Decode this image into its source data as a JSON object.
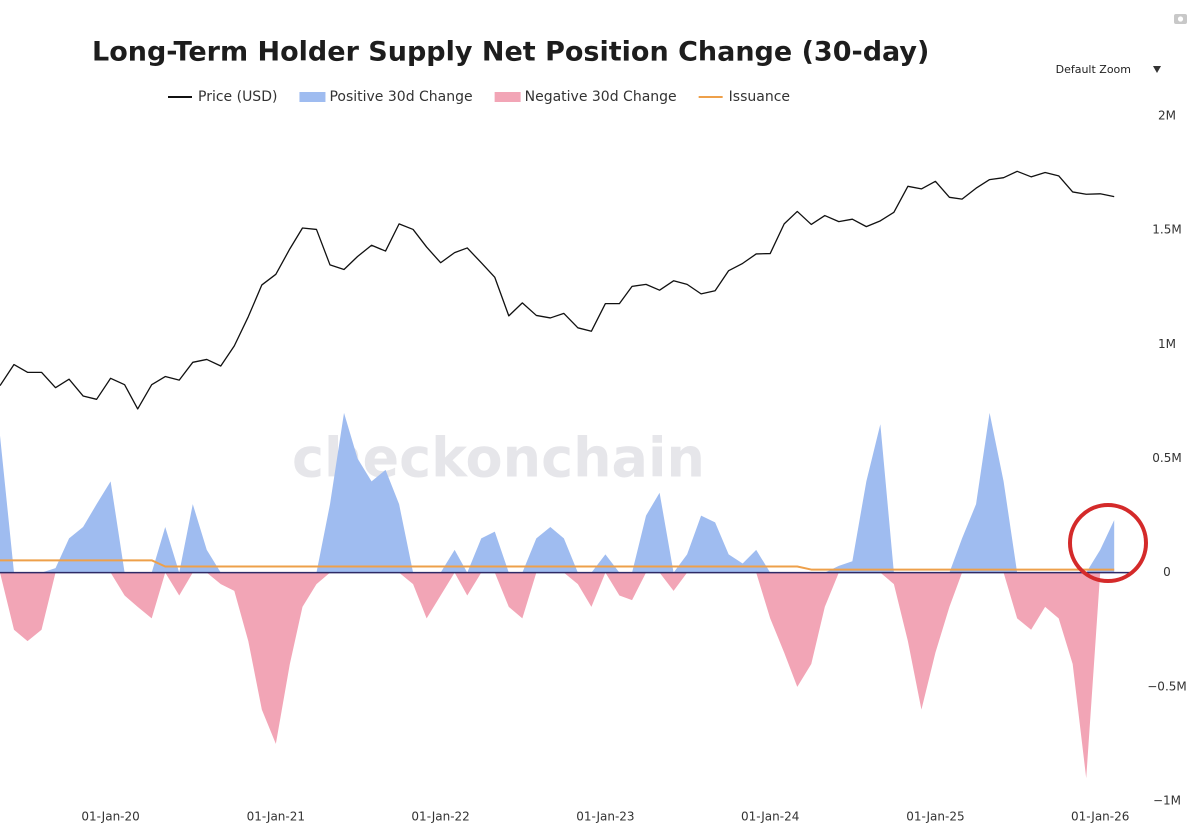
{
  "chart_data": {
    "type": "area-line",
    "title": "Long-Term Holder Supply Net Position Change (30-day)",
    "watermark": "checkonchain",
    "zoom_control": "Default Zoom",
    "x": [
      "2019-05-01",
      "2019-06-01",
      "2019-07-01",
      "2019-08-01",
      "2019-09-01",
      "2019-10-01",
      "2019-11-01",
      "2019-12-01",
      "2020-01-01",
      "2020-02-01",
      "2020-03-01",
      "2020-04-01",
      "2020-05-01",
      "2020-06-01",
      "2020-07-01",
      "2020-08-01",
      "2020-09-01",
      "2020-10-01",
      "2020-11-01",
      "2020-12-01",
      "2021-01-01",
      "2021-02-01",
      "2021-03-01",
      "2021-04-01",
      "2021-05-01",
      "2021-06-01",
      "2021-07-01",
      "2021-08-01",
      "2021-09-01",
      "2021-10-01",
      "2021-11-01",
      "2021-12-01",
      "2022-01-01",
      "2022-02-01",
      "2022-03-01",
      "2022-04-01",
      "2022-05-01",
      "2022-06-01",
      "2022-07-01",
      "2022-08-01",
      "2022-09-01",
      "2022-10-01",
      "2022-11-01",
      "2022-12-01",
      "2023-01-01",
      "2023-02-01",
      "2023-03-01",
      "2023-04-01",
      "2023-05-01",
      "2023-06-01",
      "2023-07-01",
      "2023-08-01",
      "2023-09-01",
      "2023-10-01",
      "2023-11-01",
      "2023-12-01",
      "2024-01-01",
      "2024-02-01",
      "2024-03-01",
      "2024-04-01",
      "2024-05-01",
      "2024-06-01",
      "2024-07-01",
      "2024-08-01",
      "2024-09-01",
      "2024-10-01",
      "2024-11-01",
      "2024-12-01",
      "2025-01-01",
      "2025-02-01",
      "2025-03-01",
      "2025-04-01",
      "2025-05-01",
      "2025-06-01",
      "2025-07-01",
      "2025-08-01",
      "2025-09-01",
      "2025-10-01",
      "2025-11-01",
      "2025-12-01",
      "2026-01-01",
      "2026-02-01"
    ],
    "xlim": [
      "2019-05-01",
      "2026-03-08"
    ],
    "xticks": [
      {
        "value": "2020-01-01",
        "label": "01-Jan-20"
      },
      {
        "value": "2021-01-01",
        "label": "01-Jan-21"
      },
      {
        "value": "2022-01-01",
        "label": "01-Jan-22"
      },
      {
        "value": "2023-01-01",
        "label": "01-Jan-23"
      },
      {
        "value": "2024-01-01",
        "label": "01-Jan-24"
      },
      {
        "value": "2025-01-01",
        "label": "01-Jan-25"
      },
      {
        "value": "2026-01-01",
        "label": "01-Jan-26"
      }
    ],
    "ylim": [
      -1000000,
      2000000
    ],
    "yticks": [
      {
        "value": 2000000,
        "label": "2M"
      },
      {
        "value": 1500000,
        "label": "1.5M"
      },
      {
        "value": 1000000,
        "label": "1M"
      },
      {
        "value": 500000,
        "label": "0.5M"
      },
      0,
      {
        "value": -500000,
        "label": "−0.5M"
      },
      {
        "value": -1000000,
        "label": "−1M"
      }
    ],
    "y2lim": [
      54,
      227000
    ],
    "y2scale": "log",
    "grid": false,
    "series": [
      {
        "name": "Price (USD)",
        "color": "#111111",
        "style": "line",
        "axis": "y2",
        "values": [
          8500,
          11000,
          10000,
          10000,
          8300,
          9200,
          7500,
          7200,
          9300,
          8600,
          6400,
          8600,
          9500,
          9100,
          11300,
          11700,
          10800,
          13800,
          19700,
          29000,
          33000,
          45000,
          58000,
          57000,
          37000,
          35000,
          41000,
          47000,
          43800,
          61000,
          57000,
          46000,
          38000,
          43000,
          45500,
          38000,
          31800,
          19900,
          23300,
          20000,
          19400,
          20500,
          17200,
          16500,
          23100,
          23100,
          28500,
          29200,
          27200,
          30500,
          29200,
          26000,
          27000,
          34500,
          37700,
          42300,
          42500,
          61000,
          71000,
          60600,
          67500,
          62700,
          64600,
          59000,
          63300,
          70200,
          96400,
          93400,
          102400,
          84300,
          82500,
          94200,
          104600,
          107100,
          115700,
          108200,
          114000,
          109500,
          90000,
          87500,
          88000,
          85000
        ]
      },
      {
        "name": "Positive 30d Change",
        "color": "#9fbcf0",
        "style": "area",
        "values": [
          600000,
          0,
          0,
          0,
          20000,
          150000,
          200000,
          300000,
          400000,
          0,
          0,
          0,
          200000,
          0,
          300000,
          100000,
          0,
          0,
          0,
          0,
          0,
          0,
          0,
          0,
          300000,
          700000,
          500000,
          400000,
          450000,
          300000,
          0,
          0,
          0,
          100000,
          0,
          150000,
          180000,
          0,
          0,
          150000,
          200000,
          150000,
          0,
          0,
          80000,
          0,
          0,
          250000,
          350000,
          0,
          80000,
          250000,
          220000,
          80000,
          40000,
          100000,
          0,
          0,
          0,
          0,
          0,
          30000,
          50000,
          400000,
          650000,
          0,
          0,
          0,
          0,
          0,
          150000,
          300000,
          700000,
          400000,
          0,
          0,
          0,
          0,
          0,
          0,
          100000,
          230000
        ]
      },
      {
        "name": "Negative 30d Change",
        "color": "#f2a5b6",
        "style": "area",
        "values": [
          0,
          -250000,
          -300000,
          -250000,
          0,
          0,
          0,
          0,
          0,
          -100000,
          -150000,
          -200000,
          0,
          -100000,
          0,
          0,
          -50000,
          -80000,
          -300000,
          -600000,
          -750000,
          -400000,
          -150000,
          -50000,
          0,
          0,
          0,
          0,
          0,
          0,
          -50000,
          -200000,
          -100000,
          0,
          -100000,
          0,
          0,
          -150000,
          -200000,
          0,
          0,
          0,
          -50000,
          -150000,
          0,
          -100000,
          -120000,
          0,
          0,
          -80000,
          0,
          0,
          0,
          0,
          0,
          0,
          -200000,
          -350000,
          -500000,
          -400000,
          -150000,
          0,
          0,
          0,
          0,
          -50000,
          -300000,
          -600000,
          -350000,
          -150000,
          0,
          0,
          0,
          0,
          -200000,
          -250000,
          -150000,
          -200000,
          -400000,
          -900000,
          0,
          0
        ]
      },
      {
        "name": "Issuance",
        "color": "#eea04a",
        "style": "line",
        "values": [
          54000,
          54000,
          54000,
          54000,
          54000,
          54000,
          54000,
          54000,
          54000,
          54000,
          54000,
          54000,
          27000,
          27000,
          27000,
          27000,
          27000,
          27000,
          27000,
          27000,
          27000,
          27000,
          27000,
          27000,
          27000,
          27000,
          27000,
          27000,
          27000,
          27000,
          27000,
          27000,
          27000,
          27000,
          27000,
          27000,
          27000,
          27000,
          27000,
          27000,
          27000,
          27000,
          27000,
          27000,
          27000,
          27000,
          27000,
          27000,
          27000,
          27000,
          27000,
          27000,
          27000,
          27000,
          27000,
          27000,
          27000,
          27000,
          27000,
          13500,
          13500,
          13500,
          13500,
          13500,
          13500,
          13500,
          13500,
          13500,
          13500,
          13500,
          13500,
          13500,
          13500,
          13500,
          13500,
          13500,
          13500,
          13500,
          13500,
          13500,
          13500,
          13500
        ]
      }
    ]
  }
}
